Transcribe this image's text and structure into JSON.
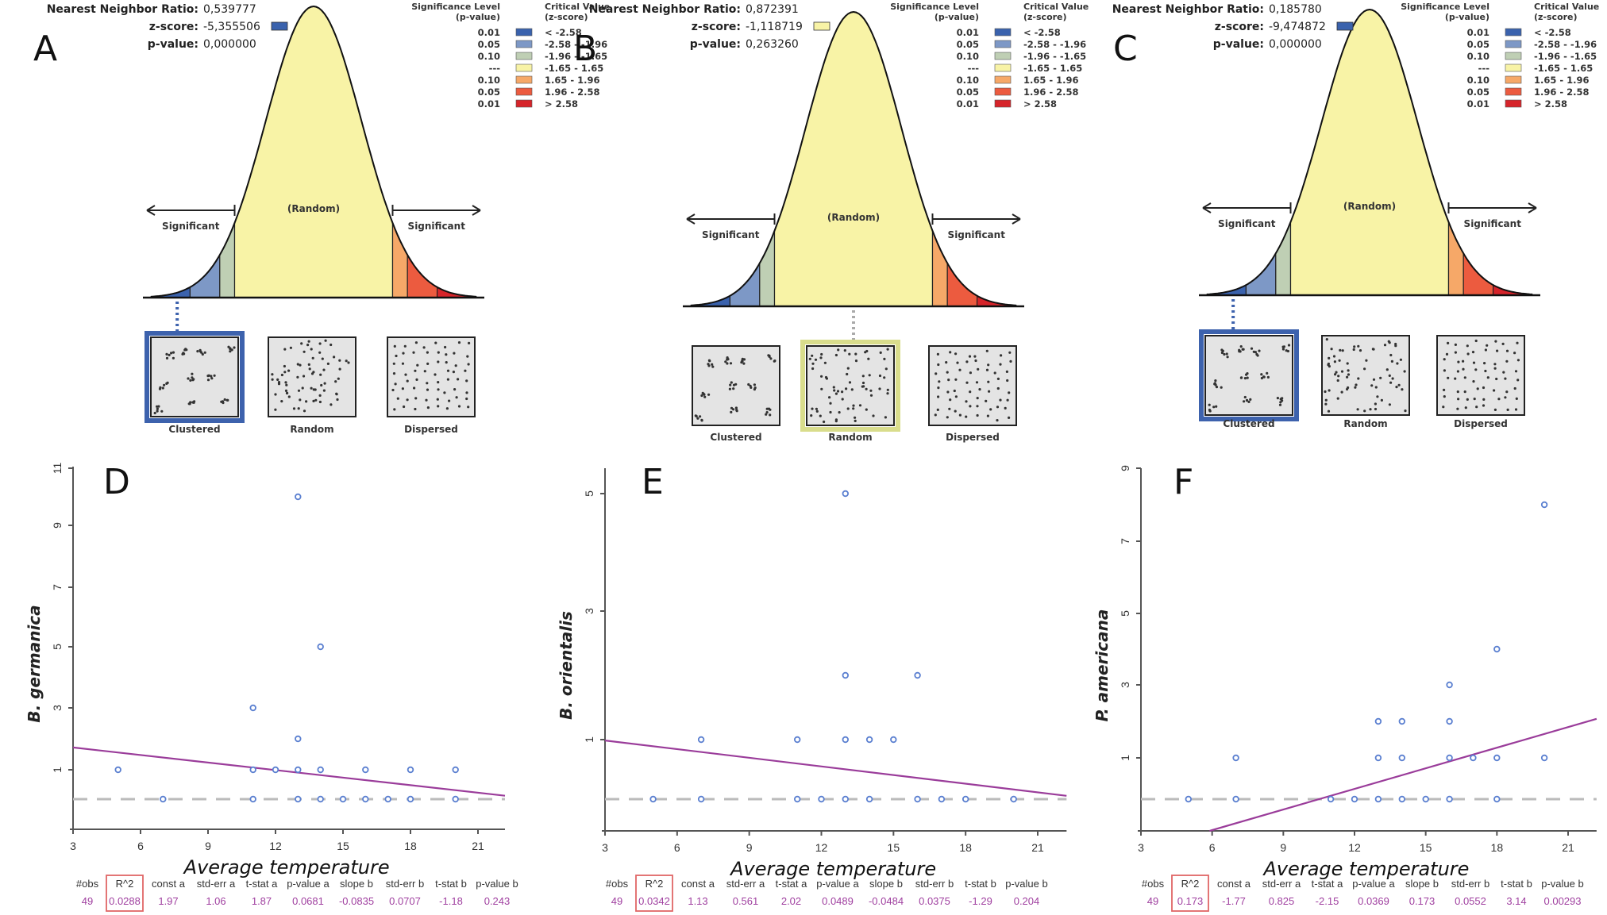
{
  "colors": {
    "bin_-3": "#3a62ad",
    "bin_-2": "#7d98c6",
    "bin_-1": "#bfcfb4",
    "bin_0": "#f8f3a6",
    "bin_1": "#f6a868",
    "bin_2": "#ec5b3f",
    "bin_3": "#d6242a",
    "point": "#5a7fd0",
    "regression_line": "#9a3c9a",
    "zero_line": "#bbbbbb",
    "highlight_clustered": "#3d62ad",
    "highlight_random": "#d9dd8c",
    "r2_box": "#e06666"
  },
  "nn_panels": [
    {
      "letter": "A",
      "ratio_label": "Nearest Neighbor Ratio:",
      "ratio_value": "0,539777",
      "z_label": "z-score:",
      "z_value": "-5,355506",
      "z_bin": -3,
      "p_label": "p-value:",
      "p_value": "0,000000",
      "highlight": "Clustered"
    },
    {
      "letter": "B",
      "ratio_label": "Nearest Neighbor Ratio:",
      "ratio_value": "0,872391",
      "z_label": "z-score:",
      "z_value": "-1,118719",
      "z_bin": 0,
      "p_label": "p-value:",
      "p_value": "0,263260",
      "highlight": "Random"
    },
    {
      "letter": "C",
      "ratio_label": "Nearest Neighbor Ratio:",
      "ratio_value": "0,185780",
      "z_label": "z-score:",
      "z_value": "-9,474872",
      "z_bin": -3,
      "p_label": "p-value:",
      "p_value": "0,000000",
      "highlight": "Clustered"
    }
  ],
  "legend": {
    "sig_header_1": "Significance Level",
    "sig_header_2": "(p-value)",
    "crit_header_1": "Critical Value",
    "crit_header_2": "(z-score)",
    "rows": [
      {
        "p": "0.01",
        "z": "< -2.58",
        "bin": -3
      },
      {
        "p": "0.05",
        "z": "-2.58 - -1.96",
        "bin": -2
      },
      {
        "p": "0.10",
        "z": "-1.96 - -1.65",
        "bin": -1
      },
      {
        "p": "---",
        "z": "-1.65 - 1.65",
        "bin": 0
      },
      {
        "p": "0.10",
        "z": "1.65 - 1.96",
        "bin": 1
      },
      {
        "p": "0.05",
        "z": "1.96 - 2.58",
        "bin": 2
      },
      {
        "p": "0.01",
        "z": "> 2.58",
        "bin": 3
      }
    ]
  },
  "curve_labels": {
    "significant_left": "Significant",
    "significant_right": "Significant",
    "random": "(Random)"
  },
  "patterns": [
    "Clustered",
    "Random",
    "Dispersed"
  ],
  "chart_data": [
    {
      "type": "scatter",
      "letter": "D",
      "title": "",
      "xlabel": "Average temperature",
      "ylabel": "B. germanica",
      "x_ticks": [
        3,
        6,
        9,
        12,
        15,
        18,
        21
      ],
      "y_ticks": [
        1,
        3,
        5,
        7,
        9,
        11
      ],
      "xlim": [
        3,
        22
      ],
      "ylim": [
        -1,
        11
      ],
      "points": [
        [
          5,
          1
        ],
        [
          7,
          0
        ],
        [
          11,
          3
        ],
        [
          11,
          1
        ],
        [
          11,
          0
        ],
        [
          12,
          1
        ],
        [
          13,
          10
        ],
        [
          13,
          2
        ],
        [
          13,
          1
        ],
        [
          13,
          0
        ],
        [
          14,
          5
        ],
        [
          14,
          1
        ],
        [
          14,
          0
        ],
        [
          15,
          0
        ],
        [
          16,
          1
        ],
        [
          16,
          0
        ],
        [
          17,
          0
        ],
        [
          18,
          1
        ],
        [
          18,
          0
        ],
        [
          20,
          1
        ],
        [
          20,
          0
        ]
      ],
      "regression": {
        "intercept": 1.97,
        "slope": -0.0835
      },
      "zero_line": 0,
      "stats": {
        "headers": [
          "#obs",
          "R^2",
          "const a",
          "std-err a",
          "t-stat a",
          "p-value a",
          "slope b",
          "std-err b",
          "t-stat b",
          "p-value b"
        ],
        "values": [
          "49",
          "0.0288",
          "1.97",
          "1.06",
          "1.87",
          "0.0681",
          "-0.0835",
          "0.0707",
          "-1.18",
          "0.243"
        ]
      }
    },
    {
      "type": "scatter",
      "letter": "E",
      "title": "",
      "xlabel": "Average temperature",
      "ylabel": "B. orientalis",
      "x_ticks": [
        3,
        6,
        9,
        12,
        15,
        18,
        21
      ],
      "y_ticks": [
        1,
        3,
        5
      ],
      "xlim": [
        3,
        22
      ],
      "ylim": [
        -1,
        5.6
      ],
      "points": [
        [
          5,
          0
        ],
        [
          7,
          1
        ],
        [
          7,
          0
        ],
        [
          11,
          1
        ],
        [
          11,
          0
        ],
        [
          12,
          0
        ],
        [
          13,
          5
        ],
        [
          13,
          2
        ],
        [
          13,
          1
        ],
        [
          13,
          0
        ],
        [
          14,
          1
        ],
        [
          14,
          0
        ],
        [
          15,
          1
        ],
        [
          16,
          2
        ],
        [
          16,
          0
        ],
        [
          17,
          0
        ],
        [
          18,
          0
        ],
        [
          20,
          0
        ]
      ],
      "regression": {
        "intercept": 1.13,
        "slope": -0.0484
      },
      "zero_line": 0,
      "stats": {
        "headers": [
          "#obs",
          "R^2",
          "const a",
          "std-err a",
          "t-stat a",
          "p-value a",
          "slope b",
          "std-err b",
          "t-stat b",
          "p-value b"
        ],
        "values": [
          "49",
          "0.0342",
          "1.13",
          "0.561",
          "2.02",
          "0.0489",
          "-0.0484",
          "0.0375",
          "-1.29",
          "0.204"
        ]
      }
    },
    {
      "type": "scatter",
      "letter": "F",
      "title": "",
      "xlabel": "Average temperature",
      "ylabel": "P. americana",
      "x_ticks": [
        3,
        6,
        9,
        12,
        15,
        18,
        21
      ],
      "y_ticks": [
        1,
        3,
        5,
        7,
        9
      ],
      "xlim": [
        3,
        22
      ],
      "ylim": [
        -1,
        9
      ],
      "points": [
        [
          5,
          0
        ],
        [
          7,
          1
        ],
        [
          7,
          0
        ],
        [
          11,
          0
        ],
        [
          12,
          0
        ],
        [
          13,
          2
        ],
        [
          13,
          1
        ],
        [
          13,
          0
        ],
        [
          14,
          2
        ],
        [
          14,
          1
        ],
        [
          14,
          0
        ],
        [
          15,
          0
        ],
        [
          16,
          3
        ],
        [
          16,
          2
        ],
        [
          16,
          1
        ],
        [
          16,
          0
        ],
        [
          17,
          1
        ],
        [
          18,
          4
        ],
        [
          18,
          1
        ],
        [
          18,
          0
        ],
        [
          20,
          8
        ],
        [
          20,
          1
        ]
      ],
      "regression": {
        "intercept": -1.77,
        "slope": 0.173
      },
      "zero_line": 0,
      "stats": {
        "headers": [
          "#obs",
          "R^2",
          "const a",
          "std-err a",
          "t-stat a",
          "p-value a",
          "slope b",
          "std-err b",
          "t-stat b",
          "p-value b"
        ],
        "values": [
          "49",
          "0.173",
          "-1.77",
          "0.825",
          "-2.15",
          "0.0369",
          "0.173",
          "0.0552",
          "3.14",
          "0.00293"
        ]
      }
    }
  ]
}
